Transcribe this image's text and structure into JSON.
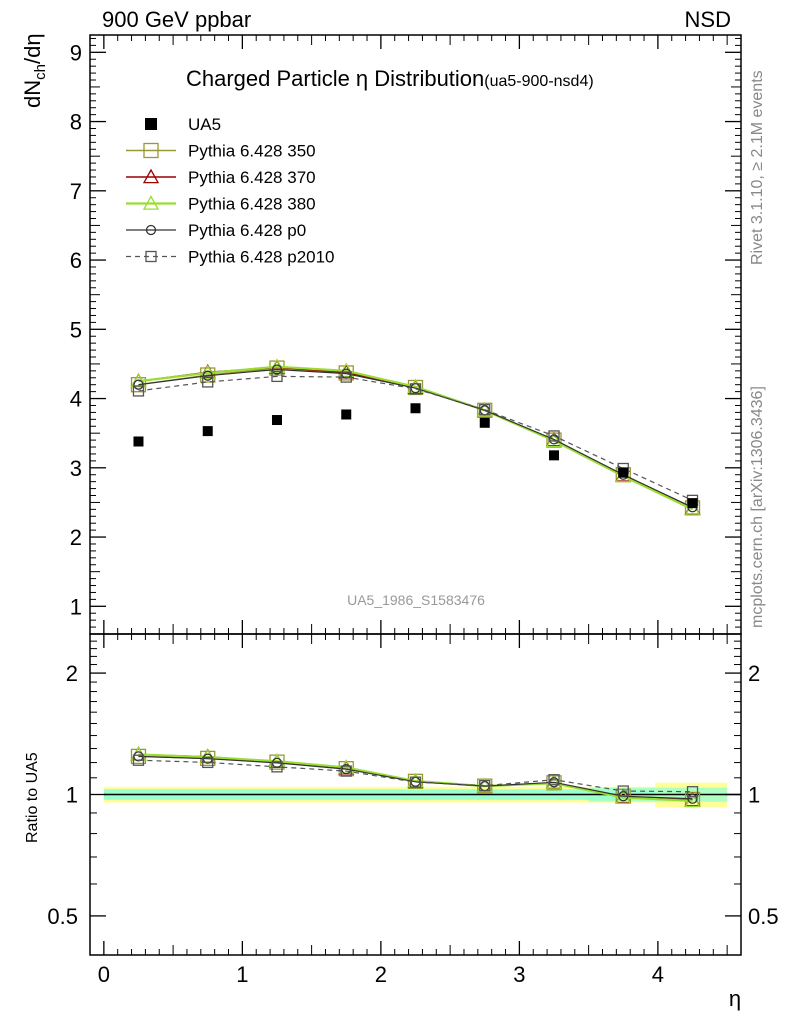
{
  "header": {
    "left": "900 GeV ppbar",
    "right": "NSD"
  },
  "title": {
    "main": "Charged Particle",
    "eta": "η",
    "main2": " Distribution",
    "tag": "(ua5-900-nsd4)"
  },
  "side": {
    "rivet": "Rivet 3.1.10, ≥ 2.1M events",
    "mcplots": "mcplots.cern.ch [arXiv:1306.3436]"
  },
  "watermark": "UA5_1986_S1583476",
  "colors": {
    "data": "#000000",
    "p350": "#999933",
    "p370": "#990000",
    "p380": "#99dd33",
    "p0": "#333333",
    "p2010": "#555555"
  },
  "chart_data": [
    {
      "type": "line",
      "title": "Charged Particle η Distribution",
      "ylabel_main": "dN",
      "ylabel_sub": "ch",
      "ylabel_tail": "/dη",
      "xlabel": "η",
      "xlim": [
        -0.1,
        4.6
      ],
      "ylim": [
        0.6,
        9.25
      ],
      "x_ticks": [
        "0",
        "1",
        "2",
        "3",
        "4"
      ],
      "y_ticks": [
        "1",
        "2",
        "3",
        "4",
        "5",
        "6",
        "7",
        "8",
        "9"
      ],
      "x": [
        0.25,
        0.75,
        1.25,
        1.75,
        2.25,
        2.75,
        3.25,
        3.75,
        4.25
      ],
      "series": [
        {
          "name": "UA5",
          "values": [
            3.38,
            3.53,
            3.69,
            3.77,
            3.86,
            3.65,
            3.18,
            2.93,
            2.49
          ]
        },
        {
          "name": "Pythia 6.428 350",
          "values": [
            4.2,
            4.34,
            4.44,
            4.37,
            4.16,
            3.83,
            3.4,
            2.9,
            2.42
          ]
        },
        {
          "name": "Pythia 6.428 370",
          "values": [
            4.25,
            4.38,
            4.45,
            4.38,
            4.16,
            3.83,
            3.4,
            2.89,
            2.41
          ]
        },
        {
          "name": "Pythia 6.428 380",
          "values": [
            4.25,
            4.37,
            4.46,
            4.4,
            4.17,
            3.83,
            3.39,
            2.88,
            2.4
          ]
        },
        {
          "name": "Pythia 6.428 p0",
          "values": [
            4.2,
            4.33,
            4.42,
            4.36,
            4.15,
            3.83,
            3.41,
            2.9,
            2.43
          ]
        },
        {
          "name": "Pythia 6.428 p2010",
          "values": [
            4.11,
            4.24,
            4.32,
            4.31,
            4.14,
            3.84,
            3.46,
            2.99,
            2.53
          ]
        }
      ]
    },
    {
      "type": "line",
      "ylabel": "Ratio to UA5",
      "xlabel": "η",
      "xlim": [
        -0.1,
        4.6
      ],
      "ylim": [
        0.4,
        2.5
      ],
      "y_scale": "log",
      "y_ticks": [
        "0.5",
        "1",
        "2"
      ],
      "y_tick_values": [
        0.5,
        1,
        2
      ],
      "x": [
        0.25,
        0.75,
        1.25,
        1.75,
        2.25,
        2.75,
        3.25,
        3.75,
        4.25
      ],
      "reference": 1,
      "bands": {
        "inner": 0.03,
        "outer": 0.035,
        "x_range": [
          0,
          4.5
        ]
      },
      "series": [
        {
          "name": "Pythia 6.428 350",
          "values": [
            1.243,
            1.229,
            1.203,
            1.159,
            1.078,
            1.049,
            1.069,
            0.99,
            0.972
          ]
        },
        {
          "name": "Pythia 6.428 370",
          "values": [
            1.257,
            1.241,
            1.206,
            1.162,
            1.078,
            1.049,
            1.069,
            0.986,
            0.968
          ]
        },
        {
          "name": "Pythia 6.428 380",
          "values": [
            1.257,
            1.238,
            1.209,
            1.167,
            1.08,
            1.049,
            1.066,
            0.983,
            0.964
          ]
        },
        {
          "name": "Pythia 6.428 p0",
          "values": [
            1.243,
            1.227,
            1.198,
            1.156,
            1.075,
            1.049,
            1.072,
            0.99,
            0.976
          ]
        },
        {
          "name": "Pythia 6.428 p2010",
          "values": [
            1.216,
            1.201,
            1.171,
            1.143,
            1.073,
            1.052,
            1.088,
            1.02,
            1.016
          ]
        }
      ]
    }
  ]
}
